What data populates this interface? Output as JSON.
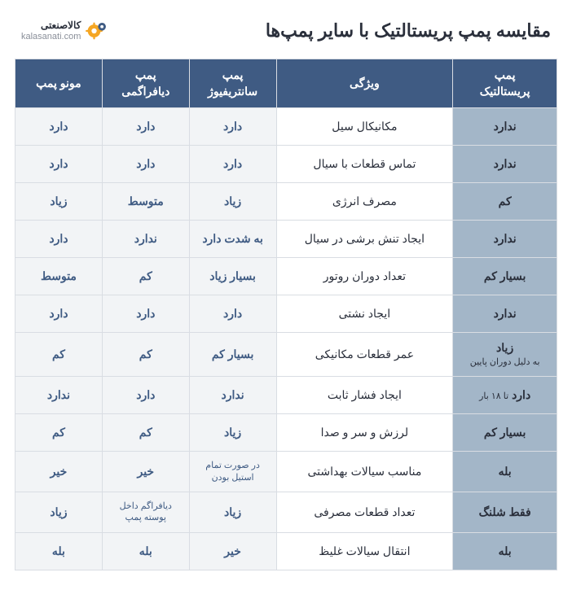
{
  "brand": {
    "fa": "کالاصنعتی",
    "en": "kalasanati.com"
  },
  "title": "مقایسه پمپ پریستالتیک با سایر پمپ‌ها",
  "columns": {
    "peristaltic": "پمپ\nپریستالتیک",
    "feature": "ویژگی",
    "centrifuge": "پمپ\nسانتریفیوژ",
    "diaphragm": "پمپ\nدیافراگمی",
    "mono": "مونو پمپ"
  },
  "rows": [
    {
      "feature": "مکانیکال سیل",
      "peristaltic": "ندارد",
      "centrifuge": "دارد",
      "diaphragm": "دارد",
      "mono": "دارد"
    },
    {
      "feature": "تماس قطعات با سیال",
      "peristaltic": "ندارد",
      "centrifuge": "دارد",
      "diaphragm": "دارد",
      "mono": "دارد"
    },
    {
      "feature": "مصرف انرژی",
      "peristaltic": "کم",
      "centrifuge": "زیاد",
      "diaphragm": "متوسط",
      "mono": "زیاد"
    },
    {
      "feature": "ایجاد تنش برشی در سیال",
      "peristaltic": "ندارد",
      "centrifuge": "به شدت دارد",
      "diaphragm": "ندارد",
      "mono": "دارد"
    },
    {
      "feature": "تعداد دوران روتور",
      "peristaltic": "بسیار کم",
      "centrifuge": "بسیار زیاد",
      "diaphragm": "کم",
      "mono": "متوسط"
    },
    {
      "feature": "ایجاد نشتی",
      "peristaltic": "ندارد",
      "centrifuge": "دارد",
      "diaphragm": "دارد",
      "mono": "دارد"
    },
    {
      "feature": "عمر قطعات مکانیکی",
      "peristaltic": "زیاد",
      "peristaltic_note": "به دلیل دوران پایین",
      "centrifuge": "بسیار کم",
      "diaphragm": "کم",
      "mono": "کم"
    },
    {
      "feature": "ایجاد فشار ثابت",
      "peristaltic": "دارد",
      "peristaltic_note_inline": "تا ۱۸ بار",
      "centrifuge": "ندارد",
      "diaphragm": "دارد",
      "mono": "ندارد"
    },
    {
      "feature": "لرزش و سر و صدا",
      "peristaltic": "بسیار کم",
      "centrifuge": "زیاد",
      "diaphragm": "کم",
      "mono": "کم"
    },
    {
      "feature": "مناسب سیالات بهداشتی",
      "peristaltic": "بله",
      "centrifuge": "در صورت تمام استیل بودن",
      "centrifuge_small": true,
      "diaphragm": "خیر",
      "mono": "خیر"
    },
    {
      "feature": "تعداد قطعات مصرفی",
      "peristaltic": "فقط شلنگ",
      "centrifuge": "زیاد",
      "diaphragm": "دیافراگم داخل پوسته پمپ",
      "diaphragm_small": true,
      "mono": "زیاد"
    },
    {
      "feature": "انتقال سیالات غلیظ",
      "peristaltic": "بله",
      "centrifuge": "خیر",
      "diaphragm": "بله",
      "mono": "بله"
    }
  ],
  "colors": {
    "header_bg": "#3f5b83",
    "header_fg": "#ffffff",
    "peri_bg": "#a3b6c8",
    "cell_bg": "#f2f4f6",
    "cell_fg": "#3f5b83",
    "feature_bg": "#ffffff",
    "feature_fg": "#2a2f3b",
    "border": "#d9dde3"
  }
}
